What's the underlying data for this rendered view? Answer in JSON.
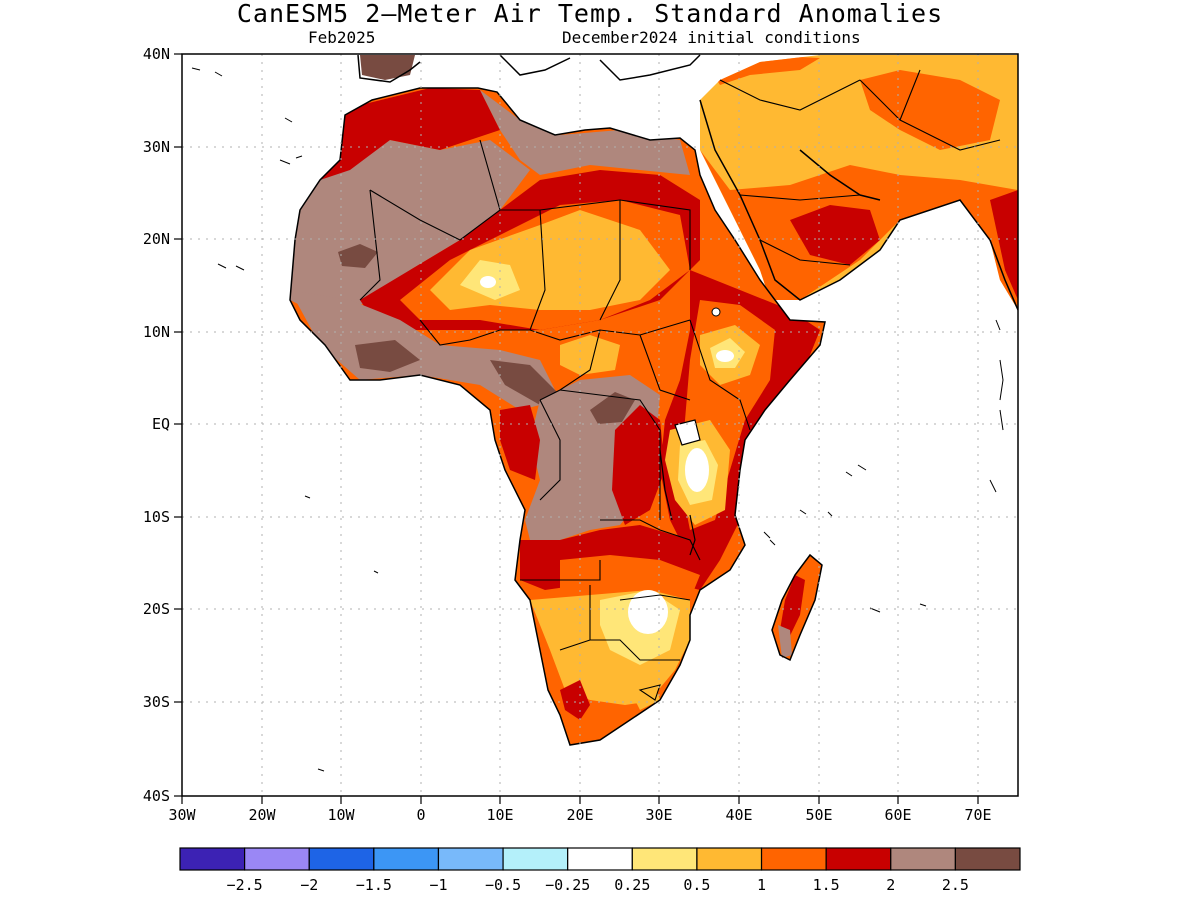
{
  "title": "CanESM5 2—Meter Air Temp. Standard Anomalies",
  "subtitle_left": "Feb2025",
  "subtitle_right": "December2024 initial conditions",
  "lat_labels": [
    "40N",
    "30N",
    "20N",
    "10N",
    "EQ",
    "10S",
    "20S",
    "30S",
    "40S"
  ],
  "lon_labels": [
    "30W",
    "20W",
    "10W",
    "0",
    "10E",
    "20E",
    "30E",
    "40E",
    "50E",
    "60E",
    "70E"
  ],
  "colorbar": {
    "colors": [
      "#3c22b4",
      "#9a87f5",
      "#1e64e6",
      "#3c96f5",
      "#78b9fa",
      "#b4f0fa",
      "#ffffff",
      "#ffe678",
      "#ffb932",
      "#ff6400",
      "#c80000",
      "#af877d",
      "#784b41"
    ],
    "labels": [
      "−2.5",
      "−2",
      "−1.5",
      "−1",
      "−0.5",
      "−0.25",
      "0.25",
      "0.5",
      "1",
      "1.5",
      "2",
      "2.5"
    ]
  },
  "regions": {
    "sahara_brown": "#af877d",
    "dark_brown": "#784b41",
    "dark_red": "#c80000",
    "orange": "#ff6400",
    "light_orange": "#ffb932",
    "yellow": "#ffe678",
    "white": "#ffffff"
  }
}
